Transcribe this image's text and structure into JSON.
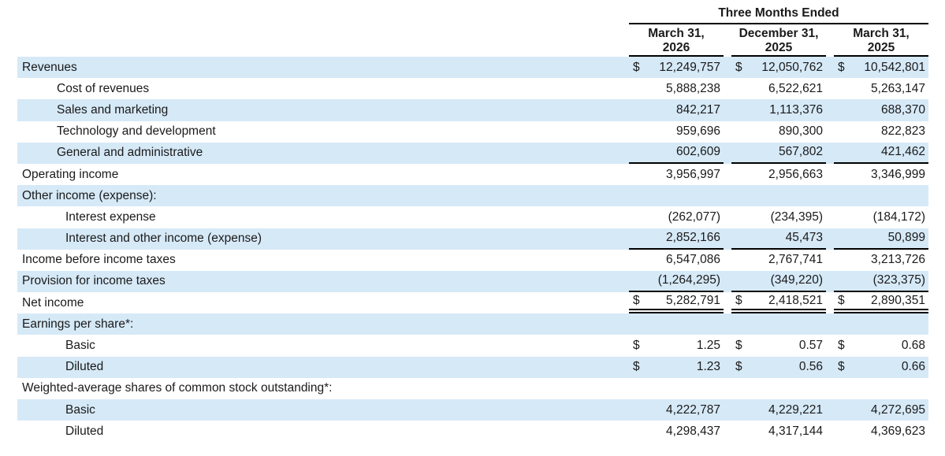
{
  "table": {
    "title": "Three Months Ended",
    "currency_symbol": "$",
    "columns": [
      {
        "label": "March 31,\n2026"
      },
      {
        "label": "December 31,\n2025"
      },
      {
        "label": "March 31,\n2025"
      }
    ],
    "rows": [
      {
        "label": "Revenues",
        "indent": 0,
        "shaded": true,
        "dollar": true,
        "rule": "",
        "values": [
          "12,249,757",
          "12,050,762",
          "10,542,801"
        ]
      },
      {
        "label": "Cost of revenues",
        "indent": 1,
        "shaded": false,
        "dollar": false,
        "rule": "",
        "values": [
          "5,888,238",
          "6,522,621",
          "5,263,147"
        ]
      },
      {
        "label": "Sales and marketing",
        "indent": 1,
        "shaded": true,
        "dollar": false,
        "rule": "",
        "values": [
          "842,217",
          "1,113,376",
          "688,370"
        ]
      },
      {
        "label": "Technology and development",
        "indent": 1,
        "shaded": false,
        "dollar": false,
        "rule": "",
        "values": [
          "959,696",
          "890,300",
          "822,823"
        ]
      },
      {
        "label": "General and administrative",
        "indent": 1,
        "shaded": true,
        "dollar": false,
        "rule": "single",
        "values": [
          "602,609",
          "567,802",
          "421,462"
        ]
      },
      {
        "label": "Operating income",
        "indent": 0,
        "shaded": false,
        "dollar": false,
        "rule": "",
        "values": [
          "3,956,997",
          "2,956,663",
          "3,346,999"
        ]
      },
      {
        "label": "Other income (expense):",
        "indent": 0,
        "shaded": true,
        "dollar": false,
        "rule": "",
        "values": [
          null,
          null,
          null
        ]
      },
      {
        "label": "Interest expense",
        "indent": 2,
        "shaded": false,
        "dollar": false,
        "rule": "",
        "values": [
          "(262,077)",
          "(234,395)",
          "(184,172)"
        ]
      },
      {
        "label": "Interest and other income (expense)",
        "indent": 2,
        "shaded": true,
        "dollar": false,
        "rule": "single",
        "values": [
          "2,852,166",
          "45,473",
          "50,899"
        ]
      },
      {
        "label": "Income before income taxes",
        "indent": 0,
        "shaded": false,
        "dollar": false,
        "rule": "",
        "values": [
          "6,547,086",
          "2,767,741",
          "3,213,726"
        ]
      },
      {
        "label": "Provision for income taxes",
        "indent": 0,
        "shaded": true,
        "dollar": false,
        "rule": "single",
        "values": [
          "(1,264,295)",
          "(349,220)",
          "(323,375)"
        ]
      },
      {
        "label": "Net income",
        "indent": 0,
        "shaded": false,
        "dollar": true,
        "rule": "double",
        "values": [
          "5,282,791",
          "2,418,521",
          "2,890,351"
        ]
      },
      {
        "label": "Earnings per share*:",
        "indent": 0,
        "shaded": true,
        "dollar": false,
        "rule": "",
        "values": [
          null,
          null,
          null
        ]
      },
      {
        "label": "Basic",
        "indent": 2,
        "shaded": false,
        "dollar": true,
        "rule": "",
        "values": [
          "1.25",
          "0.57",
          "0.68"
        ]
      },
      {
        "label": "Diluted",
        "indent": 2,
        "shaded": true,
        "dollar": true,
        "rule": "",
        "values": [
          "1.23",
          "0.56",
          "0.66"
        ]
      },
      {
        "label": "Weighted-average shares of common stock outstanding*:",
        "indent": 0,
        "shaded": false,
        "dollar": false,
        "rule": "",
        "values": [
          null,
          null,
          null
        ]
      },
      {
        "label": "Basic",
        "indent": 2,
        "shaded": true,
        "dollar": false,
        "rule": "",
        "values": [
          "4,222,787",
          "4,229,221",
          "4,272,695"
        ]
      },
      {
        "label": "Diluted",
        "indent": 2,
        "shaded": false,
        "dollar": false,
        "rule": "",
        "values": [
          "4,298,437",
          "4,317,144",
          "4,369,623"
        ]
      }
    ]
  },
  "colors": {
    "row_highlight": "#d6e9f7",
    "text": "#1a1a1a",
    "rule": "#000000"
  }
}
